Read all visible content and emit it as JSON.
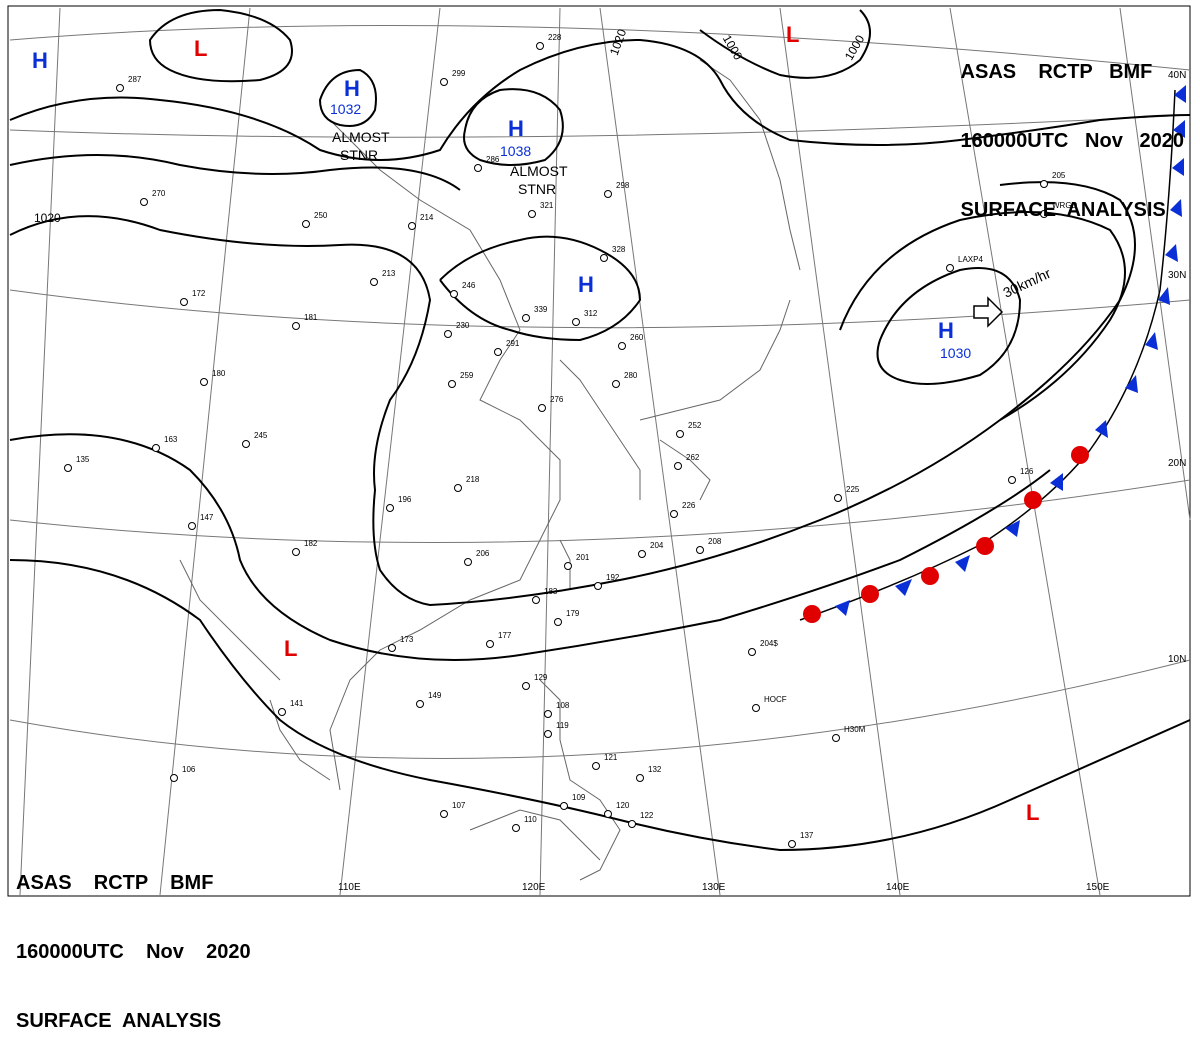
{
  "header_top_right": {
    "line1": "ASAS    RCTP   BMF",
    "line2": "160000UTC   Nov   2020",
    "line3": "SURFACE  ANALYSIS"
  },
  "header_bottom_left": {
    "line1": "ASAS    RCTP    BMF",
    "line2": "160000UTC    Nov    2020",
    "line3": "SURFACE  ANALYSIS"
  },
  "pressure_centers": [
    {
      "id": "h1",
      "type": "H",
      "label": "H",
      "value": ""
    },
    {
      "id": "l1",
      "type": "L",
      "label": "L",
      "value": ""
    },
    {
      "id": "h2",
      "type": "H",
      "label": "H",
      "value": "1032"
    },
    {
      "id": "h3",
      "type": "H",
      "label": "H",
      "value": "1038"
    },
    {
      "id": "l2",
      "type": "L",
      "label": "L",
      "value": ""
    },
    {
      "id": "h4",
      "type": "H",
      "label": "H",
      "value": ""
    },
    {
      "id": "h5",
      "type": "H",
      "label": "H",
      "value": "1030"
    },
    {
      "id": "l3",
      "type": "L",
      "label": "L",
      "value": ""
    },
    {
      "id": "l4",
      "type": "L",
      "label": "L",
      "value": ""
    }
  ],
  "isobar_labels": [
    "1020",
    "1020",
    "1000",
    "1000"
  ],
  "notes": {
    "almost_stnr_1": [
      "ALMOST",
      "STNR"
    ],
    "almost_stnr_2": [
      "ALMOST",
      "STNR"
    ],
    "motion": "30km/hr"
  },
  "longitude_labels": [
    "110E",
    "120E",
    "130E",
    "140E",
    "150E"
  ],
  "latitude_labels": [
    "40N",
    "30N",
    "20N",
    "10N"
  ],
  "station_plots": [
    "287",
    "299",
    "228",
    "286",
    "250",
    "214",
    "213",
    "246",
    "230",
    "291",
    "259",
    "270",
    "276",
    "280",
    "298",
    "321",
    "328",
    "339",
    "312",
    "260",
    "252",
    "262",
    "226",
    "225",
    "204",
    "208",
    "201",
    "192",
    "183",
    "179",
    "177",
    "173",
    "149",
    "141",
    "106",
    "107",
    "110",
    "109",
    "120",
    "122",
    "132",
    "121",
    "137",
    "108",
    "119",
    "129",
    "206",
    "218",
    "196",
    "182",
    "163",
    "147",
    "135",
    "180",
    "181",
    "245",
    "172",
    "204$",
    "HOCF",
    "H30M",
    "LAXP4",
    "WRGD",
    "205",
    "126"
  ]
}
